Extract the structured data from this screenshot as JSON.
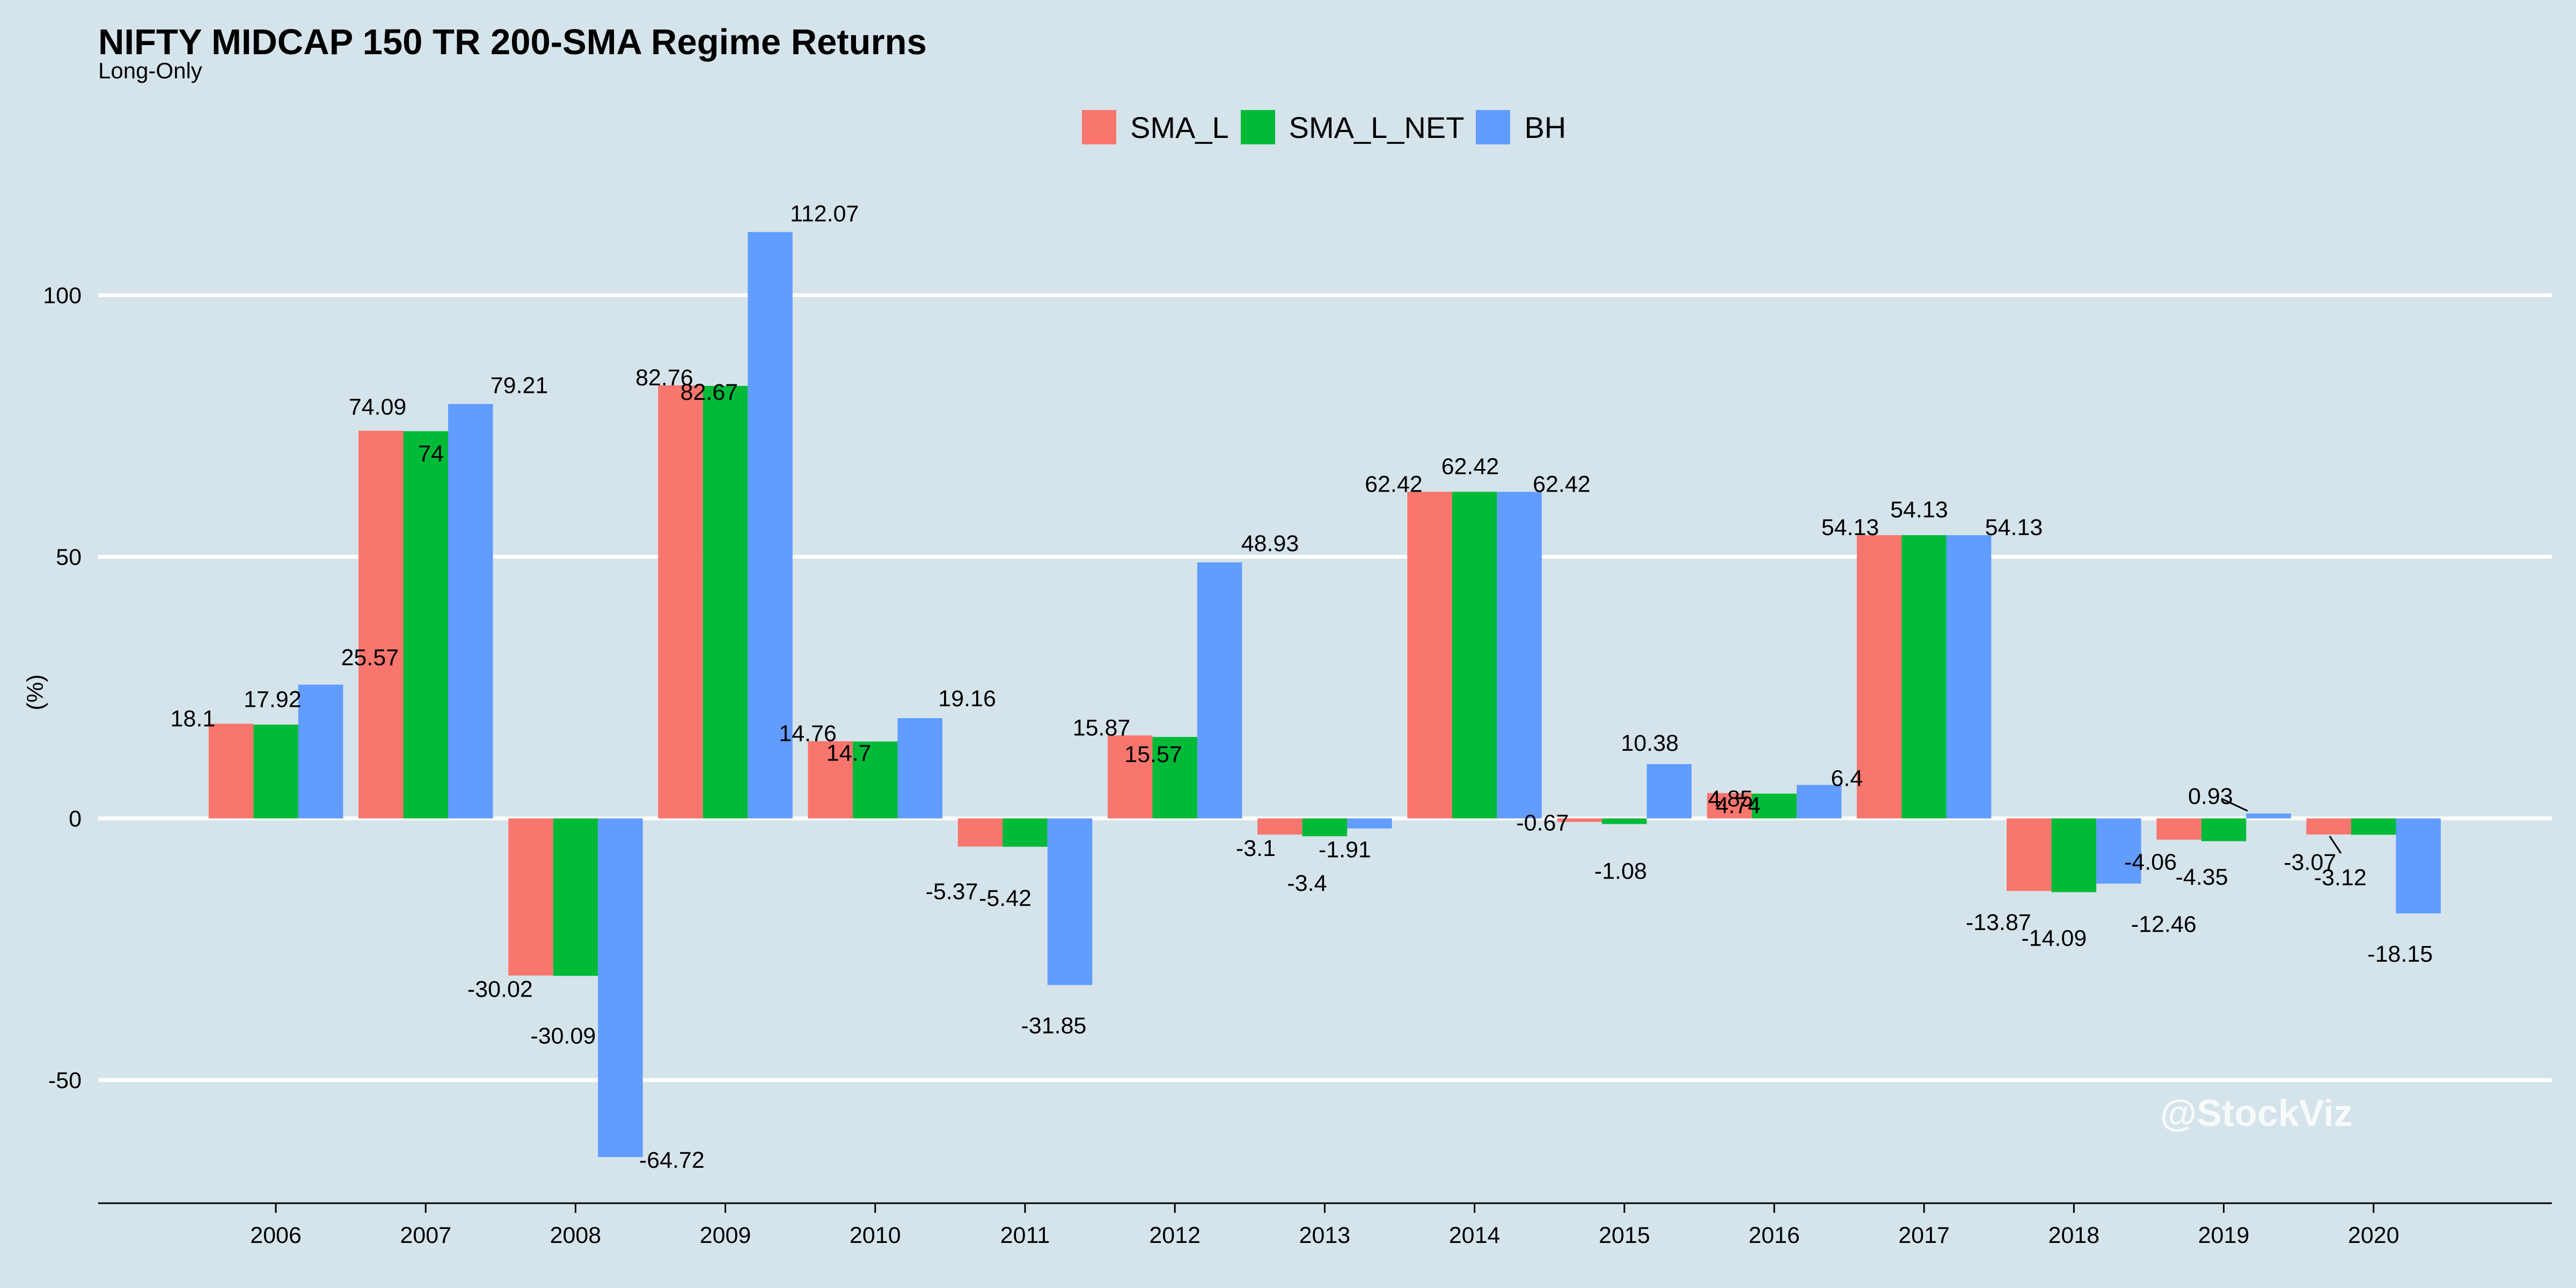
{
  "title": "NIFTY MIDCAP 150 TR 200-SMA Regime Returns",
  "subtitle": "Long-Only",
  "watermark": "@StockViz",
  "colors": {
    "background": "#d5e4eb",
    "SMA_L": "#f8766d",
    "SMA_L_NET": "#00ba38",
    "BH": "#619cff",
    "grid": "#ffffff",
    "axis": "#000000"
  },
  "chart_data": {
    "type": "bar",
    "title": "NIFTY MIDCAP 150 TR 200-SMA Regime Returns",
    "subtitle": "Long-Only",
    "xlabel": "",
    "ylabel": "(%)",
    "ylim": [
      -74,
      120
    ],
    "yticks": [
      -50,
      0,
      50,
      100
    ],
    "grid": true,
    "legend_position": "top-center",
    "categories": [
      "2006",
      "2007",
      "2008",
      "2009",
      "2010",
      "2011",
      "2012",
      "2013",
      "2014",
      "2015",
      "2016",
      "2017",
      "2018",
      "2019",
      "2020"
    ],
    "series": [
      {
        "name": "SMA_L",
        "values": [
          18.1,
          74.09,
          -30.02,
          82.76,
          14.76,
          -5.37,
          15.87,
          -3.1,
          62.42,
          -0.67,
          4.85,
          54.13,
          -13.87,
          -4.06,
          -3.07
        ]
      },
      {
        "name": "SMA_L_NET",
        "values": [
          17.92,
          74,
          -30.09,
          82.67,
          14.7,
          -5.42,
          15.57,
          -3.4,
          62.42,
          -1.08,
          4.74,
          54.13,
          -14.09,
          -4.35,
          -3.12
        ]
      },
      {
        "name": "BH",
        "values": [
          25.57,
          79.21,
          -64.72,
          112.07,
          19.16,
          -31.85,
          48.93,
          -1.91,
          62.42,
          10.38,
          6.4,
          54.13,
          -12.46,
          0.93,
          -18.15
        ]
      }
    ]
  }
}
